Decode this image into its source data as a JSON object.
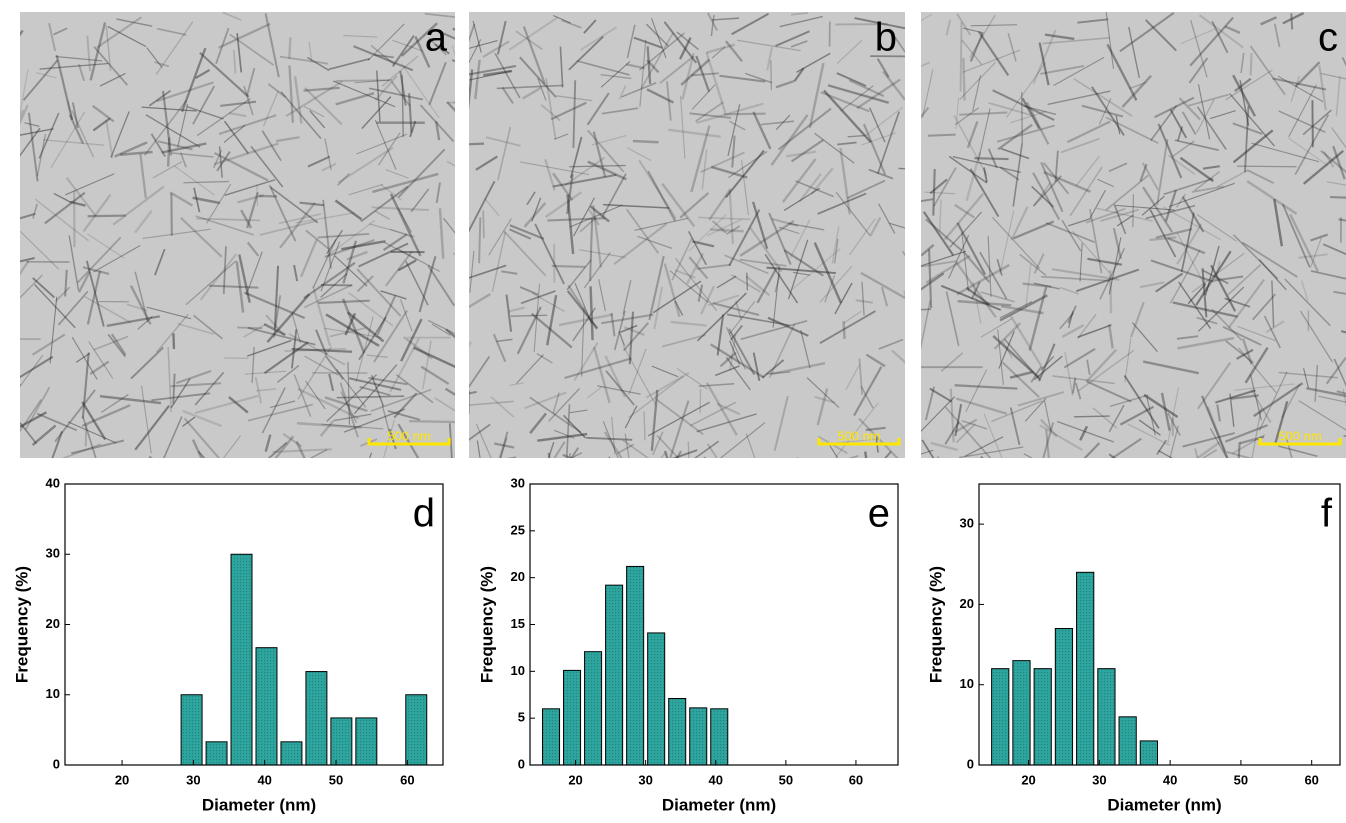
{
  "panels": [
    {
      "label": "a",
      "scale_bar": "500 nm"
    },
    {
      "label": "b",
      "scale_bar": "500 nm"
    },
    {
      "label": "c",
      "scale_bar": "500 nm"
    }
  ],
  "chart_data": [
    {
      "type": "histogram",
      "label": "d",
      "xlabel": "Diameter (nm)",
      "ylabel": "Frequency (%)",
      "color": "#2ea6a0",
      "bins": [
        28,
        31.5,
        35,
        38.5,
        42,
        45.5,
        49,
        52.5,
        56,
        59.5,
        63
      ],
      "values": [
        10,
        3.3,
        30,
        16.7,
        3.3,
        13.3,
        6.7,
        6.7,
        0,
        10
      ],
      "xlim": [
        12,
        65
      ],
      "ylim": [
        0,
        40
      ],
      "xticks": [
        20,
        30,
        40,
        50,
        60
      ],
      "yticks": [
        0,
        10,
        20,
        30,
        40
      ]
    },
    {
      "type": "histogram",
      "label": "e",
      "xlabel": "Diameter (nm)",
      "ylabel": "Frequency (%)",
      "color": "#2ea6a0",
      "bins": [
        15,
        18,
        21,
        24,
        27,
        30,
        33,
        36,
        39,
        42
      ],
      "values": [
        6,
        10.1,
        12.1,
        19.2,
        21.2,
        14.1,
        7.1,
        6.1,
        6
      ],
      "xlim": [
        13.5,
        66
      ],
      "ylim": [
        0,
        30
      ],
      "xticks": [
        20,
        30,
        40,
        50,
        60
      ],
      "yticks": [
        0,
        5,
        10,
        15,
        20,
        25,
        30
      ]
    },
    {
      "type": "histogram",
      "label": "f",
      "xlabel": "Diameter (nm)",
      "ylabel": "Frequency (%)",
      "color": "#2ea6a0",
      "bins": [
        14.5,
        17.5,
        20.5,
        23.5,
        26.5,
        29.5,
        32.5,
        35.5,
        38.5
      ],
      "values": [
        12,
        13,
        12,
        17,
        24,
        12,
        6,
        3
      ],
      "xlim": [
        13,
        64
      ],
      "ylim": [
        0,
        35
      ],
      "xticks": [
        20,
        30,
        40,
        50,
        60
      ],
      "yticks": [
        0,
        10,
        20,
        30
      ]
    }
  ]
}
